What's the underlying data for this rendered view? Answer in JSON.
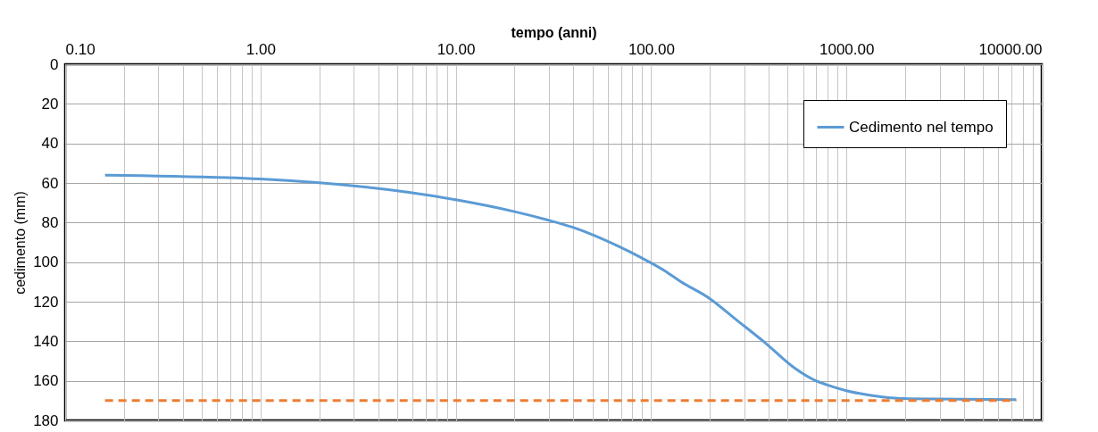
{
  "chart_data": {
    "type": "line",
    "xlabel": "tempo (anni)",
    "ylabel": "cedimento (mm)",
    "log": "x",
    "grid": true,
    "legend": "top right",
    "xlim": [
      0.1,
      10000
    ],
    "xticks": [
      {
        "value": 0.1,
        "label": "0.10"
      },
      {
        "value": 0.2,
        "label": null
      },
      {
        "value": 0.3,
        "label": null
      },
      {
        "value": 0.4,
        "label": null
      },
      {
        "value": 0.5,
        "label": null
      },
      {
        "value": 0.6,
        "label": null
      },
      {
        "value": 0.7,
        "label": null
      },
      {
        "value": 0.8,
        "label": null
      },
      {
        "value": 0.9,
        "label": null
      },
      {
        "value": 1,
        "label": "1.00"
      },
      {
        "value": 2,
        "label": null
      },
      {
        "value": 3,
        "label": null
      },
      {
        "value": 4,
        "label": null
      },
      {
        "value": 5,
        "label": null
      },
      {
        "value": 6,
        "label": null
      },
      {
        "value": 7,
        "label": null
      },
      {
        "value": 8,
        "label": null
      },
      {
        "value": 9,
        "label": null
      },
      {
        "value": 10,
        "label": "10.00"
      },
      {
        "value": 20,
        "label": null
      },
      {
        "value": 30,
        "label": null
      },
      {
        "value": 40,
        "label": null
      },
      {
        "value": 50,
        "label": null
      },
      {
        "value": 60,
        "label": null
      },
      {
        "value": 70,
        "label": null
      },
      {
        "value": 80,
        "label": null
      },
      {
        "value": 90,
        "label": null
      },
      {
        "value": 100,
        "label": "100.00"
      },
      {
        "value": 200,
        "label": null
      },
      {
        "value": 300,
        "label": null
      },
      {
        "value": 400,
        "label": null
      },
      {
        "value": 500,
        "label": null
      },
      {
        "value": 600,
        "label": null
      },
      {
        "value": 700,
        "label": null
      },
      {
        "value": 800,
        "label": null
      },
      {
        "value": 900,
        "label": null
      },
      {
        "value": 1000,
        "label": "1000.00"
      },
      {
        "value": 2000,
        "label": null
      },
      {
        "value": 3000,
        "label": null
      },
      {
        "value": 4000,
        "label": null
      },
      {
        "value": 5000,
        "label": null
      },
      {
        "value": 6000,
        "label": null
      },
      {
        "value": 7000,
        "label": null
      },
      {
        "value": 8000,
        "label": null
      },
      {
        "value": 9000,
        "label": null
      },
      {
        "value": 10000,
        "label": "10000.00"
      }
    ],
    "ylim": [
      180,
      0
    ],
    "yticks": [
      0,
      20,
      40,
      60,
      80,
      100,
      120,
      140,
      160,
      180
    ],
    "series": [
      {
        "name": "Cedimento nel tempo",
        "color": "#5b9bd5",
        "line_style": "solid",
        "x": [
          0.16,
          1,
          10,
          20,
          29,
          40,
          68,
          88,
          118,
          140,
          200,
          276,
          386,
          542,
          698,
          793,
          1000,
          1500,
          2000,
          7400
        ],
        "values": [
          56,
          58,
          68.5,
          74.5,
          78.5,
          82.5,
          92,
          97.5,
          104.5,
          109.5,
          118.5,
          129.5,
          141,
          153.5,
          160,
          162,
          165,
          168,
          169,
          169.5
        ]
      },
      {
        "color": "#ed7d31",
        "line_style": "dashed",
        "x": [
          0.16,
          7400
        ],
        "values": [
          170,
          170
        ]
      }
    ]
  }
}
